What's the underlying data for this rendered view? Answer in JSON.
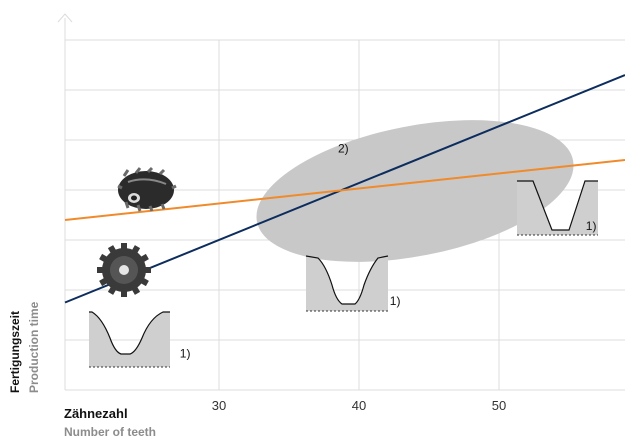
{
  "chart_data": {
    "type": "line",
    "xlabel": "Zähnezahl",
    "xlabel_secondary": "Number of teeth",
    "ylabel": "Fertigungszeit",
    "ylabel_secondary": "Production time",
    "xlim": [
      19,
      59
    ],
    "ylim": [
      0,
      7
    ],
    "x_ticks": [
      30,
      40,
      50
    ],
    "grid": true,
    "series": [
      {
        "color": "#0d2d5e",
        "x": [
          19,
          59
        ],
        "y": [
          1.75,
          6.3
        ]
      },
      {
        "color": "#f08a2a",
        "x": [
          19,
          59
        ],
        "y": [
          3.4,
          4.6
        ]
      }
    ],
    "annotations": [
      {
        "text": "2)",
        "x": 38.5,
        "y": 4.75
      },
      {
        "text": "1)",
        "x": 27.2,
        "y": 0.65
      },
      {
        "text": "1)",
        "x": 42.2,
        "y": 1.7
      },
      {
        "text": "1)",
        "x": 56.2,
        "y": 3.2
      }
    ],
    "highlight_region": {
      "shape": "ellipse",
      "cx": 44,
      "cy": 3.98,
      "rx": 11.5,
      "ry": 1.3
    }
  }
}
